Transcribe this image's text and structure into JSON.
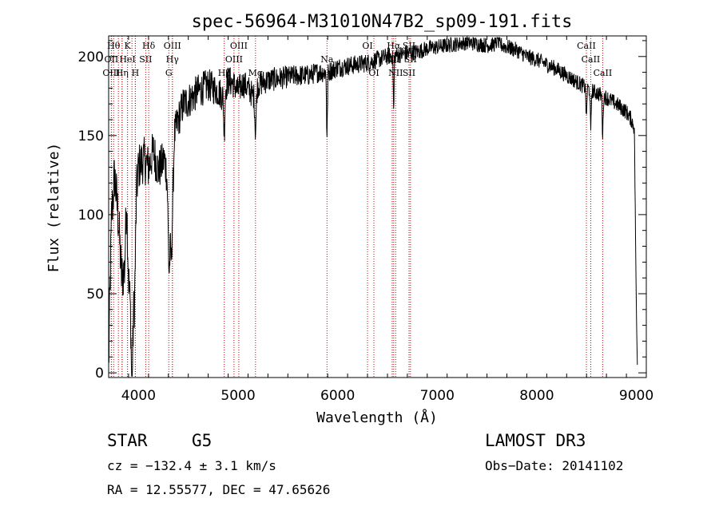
{
  "chart_data": {
    "type": "line",
    "title": "spec-56964-M31010N47B2_sp09-191.fits",
    "xlabel": "Wavelength (Å)",
    "ylabel": "Flux (relative)",
    "xlim": [
      3700,
      9100
    ],
    "ylim": [
      -3,
      213
    ],
    "x_ticks": [
      4000,
      5000,
      6000,
      7000,
      8000,
      9000
    ],
    "y_ticks": [
      0,
      50,
      100,
      150,
      200
    ],
    "grid": false,
    "legend": "none",
    "spectrum_anchors": [
      [
        3700,
        2
      ],
      [
        3710,
        40
      ],
      [
        3730,
        100
      ],
      [
        3760,
        125
      ],
      [
        3800,
        95
      ],
      [
        3830,
        60
      ],
      [
        3860,
        65
      ],
      [
        3880,
        110
      ],
      [
        3900,
        60
      ],
      [
        3930,
        30
      ],
      [
        3960,
        45
      ],
      [
        3980,
        115
      ],
      [
        4000,
        130
      ],
      [
        4050,
        135
      ],
      [
        4100,
        130
      ],
      [
        4150,
        140
      ],
      [
        4200,
        128
      ],
      [
        4260,
        135
      ],
      [
        4300,
        120
      ],
      [
        4330,
        70
      ],
      [
        4360,
        150
      ],
      [
        4400,
        160
      ],
      [
        4450,
        170
      ],
      [
        4500,
        172
      ],
      [
        4550,
        175
      ],
      [
        4600,
        178
      ],
      [
        4650,
        180
      ],
      [
        4700,
        182
      ],
      [
        4750,
        180
      ],
      [
        4800,
        178
      ],
      [
        4850,
        175
      ],
      [
        4900,
        185
      ],
      [
        4950,
        183
      ],
      [
        5000,
        178
      ],
      [
        5050,
        183
      ],
      [
        5100,
        180
      ],
      [
        5150,
        175
      ],
      [
        5200,
        182
      ],
      [
        5300,
        185
      ],
      [
        5400,
        186
      ],
      [
        5500,
        187
      ],
      [
        5600,
        188
      ],
      [
        5700,
        188
      ],
      [
        5800,
        190
      ],
      [
        5900,
        190
      ],
      [
        6000,
        193
      ],
      [
        6100,
        194
      ],
      [
        6200,
        195
      ],
      [
        6300,
        196
      ],
      [
        6400,
        198
      ],
      [
        6500,
        200
      ],
      [
        6600,
        201
      ],
      [
        6700,
        202
      ],
      [
        6800,
        203
      ],
      [
        6900,
        205
      ],
      [
        7000,
        206
      ],
      [
        7100,
        207
      ],
      [
        7200,
        208
      ],
      [
        7300,
        209
      ],
      [
        7400,
        208
      ],
      [
        7500,
        207
      ],
      [
        7600,
        208
      ],
      [
        7700,
        206
      ],
      [
        7800,
        204
      ],
      [
        7900,
        200
      ],
      [
        8000,
        198
      ],
      [
        8100,
        195
      ],
      [
        8200,
        192
      ],
      [
        8300,
        188
      ],
      [
        8400,
        184
      ],
      [
        8500,
        180
      ],
      [
        8600,
        177
      ],
      [
        8700,
        174
      ],
      [
        8800,
        170
      ],
      [
        8900,
        165
      ],
      [
        8950,
        160
      ],
      [
        8980,
        155
      ],
      [
        9000,
        40
      ],
      [
        9010,
        5
      ]
    ],
    "absorption_features": [
      {
        "x": 3935,
        "depth": 40,
        "width": 10
      },
      {
        "x": 4305,
        "depth": 45,
        "width": 12
      },
      {
        "x": 4861,
        "depth": 25,
        "width": 8
      },
      {
        "x": 5175,
        "depth": 25,
        "width": 10
      },
      {
        "x": 5893,
        "depth": 42,
        "width": 6
      },
      {
        "x": 6563,
        "depth": 35,
        "width": 6
      },
      {
        "x": 7605,
        "depth": -12,
        "width": 6
      },
      {
        "x": 8498,
        "depth": 20,
        "width": 6
      },
      {
        "x": 8542,
        "depth": 28,
        "width": 6
      },
      {
        "x": 8662,
        "depth": 25,
        "width": 6
      }
    ],
    "noise_scale": [
      [
        3700,
        18
      ],
      [
        4400,
        12
      ],
      [
        5500,
        7
      ],
      [
        7000,
        5
      ],
      [
        9000,
        5
      ]
    ],
    "line_markers": [
      {
        "x": 3750,
        "label": "Hθ",
        "row": 1
      },
      {
        "x": 3798,
        "label": "",
        "row": 1
      },
      {
        "x": 3835,
        "label": "",
        "row": 1
      },
      {
        "x": 3889,
        "label": "K",
        "row": 1
      },
      {
        "x": 3934,
        "label": "",
        "row": 1
      },
      {
        "x": 3968,
        "label": "",
        "row": 1
      },
      {
        "x": 4102,
        "label": "Hδ",
        "row": 1
      },
      {
        "x": 4340,
        "label": "OIII",
        "row": 1
      },
      {
        "x": 5007,
        "label": "OIII",
        "row": 1
      },
      {
        "x": 6300,
        "label": "OI",
        "row": 1
      },
      {
        "x": 6563,
        "label": "Hα",
        "row": 1
      },
      {
        "x": 6717,
        "label": "SII",
        "row": 1
      },
      {
        "x": 8498,
        "label": "CaII",
        "row": 1
      },
      {
        "x": 3727,
        "label": "OII",
        "row": 2
      },
      {
        "x": 3889,
        "label": "HeI",
        "row": 2
      },
      {
        "x": 4072,
        "label": "SII",
        "row": 2
      },
      {
        "x": 4340,
        "label": "Hγ",
        "row": 2
      },
      {
        "x": 4959,
        "label": "OIII",
        "row": 2
      },
      {
        "x": 5893,
        "label": "Na",
        "row": 2
      },
      {
        "x": 6548,
        "label": "NII",
        "row": 2
      },
      {
        "x": 6731,
        "label": "SII",
        "row": 2
      },
      {
        "x": 8542,
        "label": "CaII",
        "row": 2
      },
      {
        "x": 3727,
        "label": "OIII",
        "row": 3
      },
      {
        "x": 3835,
        "label": "Hη",
        "row": 3
      },
      {
        "x": 3968,
        "label": "H",
        "row": 3
      },
      {
        "x": 4304,
        "label": "G",
        "row": 3
      },
      {
        "x": 4861,
        "label": "Hβ",
        "row": 3
      },
      {
        "x": 5175,
        "label": "Mg",
        "row": 3
      },
      {
        "x": 6364,
        "label": "OI",
        "row": 3
      },
      {
        "x": 6583,
        "label": "NII",
        "row": 3
      },
      {
        "x": 6717,
        "label": "SII",
        "row": 3
      },
      {
        "x": 8662,
        "label": "CaII",
        "row": 3
      }
    ],
    "marker_color": "#cc0000"
  },
  "info": {
    "object_class": "STAR",
    "subclass": "G5",
    "survey": "LAMOST DR3",
    "redshift": "cz = −132.4 ± 3.1 km/s",
    "obs_date": "Obs−Date: 20141102",
    "coordinates": "RA =  12.55577, DEC =  47.65626"
  }
}
